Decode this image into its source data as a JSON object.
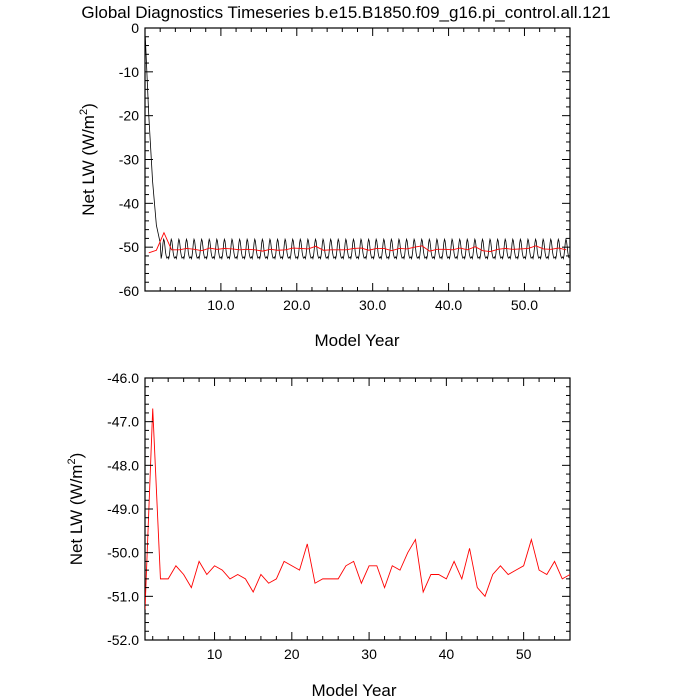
{
  "page_title": "Global Diagnostics Timeseries b.e15.B1850.f09_g16.pi_control.all.121",
  "colors": {
    "monthly": "#000000",
    "annual": "#ff0000",
    "axes": "#000000"
  },
  "chart_data": [
    {
      "id": "monthly",
      "type": "line",
      "title": "Global Diagnostics Timeseries b.e15.B1850.f09_g16.pi_control.all.121",
      "xlabel": "Model Year",
      "ylabel": "Net LW (W/m",
      "ylabel_sup": "2",
      "ylabel_close": ")",
      "xlim": [
        0,
        56
      ],
      "ylim": [
        -60,
        0
      ],
      "xticks": [
        10,
        20,
        30,
        40,
        50
      ],
      "xtick_labels": [
        "10.0",
        "20.0",
        "30.0",
        "40.0",
        "50.0"
      ],
      "yticks": [
        0,
        -10,
        -20,
        -30,
        -40,
        -50,
        -60
      ],
      "ytick_labels": [
        "0",
        "-10",
        "-20",
        "-30",
        "-40",
        "-50",
        "-60"
      ],
      "grid": false,
      "legend": "none",
      "series": [
        {
          "color": "#000000",
          "generated": "monthly",
          "spinup": [
            0.04,
            -2.0,
            0.5,
            -20.0,
            1.0,
            -35.0,
            1.5,
            -45.0,
            2.0,
            -49.0
          ],
          "month_values": [
            -52.2,
            -52.6,
            -51.9,
            -50.6,
            -49.0,
            -48.2,
            -48.6,
            -49.8,
            -51.2,
            -52.0,
            -52.5,
            -52.4
          ],
          "x_end": 55.9
        },
        {
          "color": "#ff0000",
          "x": [
            0.5,
            1.5,
            2.5,
            3.5,
            4.5,
            5.5,
            6.5,
            7.5,
            8.5,
            9.5,
            10.5,
            11.5,
            12.5,
            13.5,
            14.5,
            15.5,
            16.5,
            17.5,
            18.5,
            19.5,
            20.5,
            21.5,
            22.5,
            23.5,
            24.5,
            25.5,
            26.5,
            27.5,
            28.5,
            29.5,
            30.5,
            31.5,
            32.5,
            33.5,
            34.5,
            35.5,
            36.5,
            37.5,
            38.5,
            39.5,
            40.5,
            41.5,
            42.5,
            43.5,
            44.5,
            45.5,
            46.5,
            47.5,
            48.5,
            49.5,
            50.5,
            51.5,
            52.5,
            53.5,
            54.5,
            55.5
          ],
          "values": [
            -51.3,
            -50.7,
            -46.7,
            -50.6,
            -50.6,
            -50.3,
            -50.5,
            -50.8,
            -50.2,
            -50.5,
            -50.3,
            -50.4,
            -50.6,
            -50.5,
            -50.6,
            -50.9,
            -50.5,
            -50.7,
            -50.6,
            -50.2,
            -50.3,
            -50.4,
            -49.8,
            -50.7,
            -50.6,
            -50.6,
            -50.6,
            -50.3,
            -50.2,
            -50.7,
            -50.3,
            -50.3,
            -50.8,
            -50.3,
            -50.4,
            -50.0,
            -49.7,
            -50.9,
            -50.5,
            -50.5,
            -50.6,
            -50.2,
            -50.6,
            -49.9,
            -50.8,
            -51.0,
            -50.5,
            -50.3,
            -50.5,
            -50.4,
            -50.3,
            -49.7,
            -50.4,
            -50.5,
            -50.2,
            -50.6
          ]
        }
      ]
    },
    {
      "id": "annual",
      "type": "line",
      "xlabel": "Model Year",
      "ylabel": "Net LW (W/m",
      "ylabel_sup": "2",
      "ylabel_close": ")",
      "xlim": [
        1,
        56
      ],
      "ylim": [
        -52,
        -46
      ],
      "xticks": [
        10,
        20,
        30,
        40,
        50
      ],
      "xtick_labels": [
        "10",
        "20",
        "30",
        "40",
        "50"
      ],
      "yticks": [
        -46,
        -47,
        -48,
        -49,
        -50,
        -51,
        -52
      ],
      "ytick_labels": [
        "-46.0",
        "-47.0",
        "-48.0",
        "-49.0",
        "-50.0",
        "-51.0",
        "-52.0"
      ],
      "grid": false,
      "legend": "none",
      "series": [
        {
          "color": "#ff0000",
          "x": [
            1,
            2,
            3,
            4,
            5,
            6,
            7,
            8,
            9,
            10,
            11,
            12,
            13,
            14,
            15,
            16,
            17,
            18,
            19,
            20,
            21,
            22,
            23,
            24,
            25,
            26,
            27,
            28,
            29,
            30,
            31,
            32,
            33,
            34,
            35,
            36,
            37,
            38,
            39,
            40,
            41,
            42,
            43,
            44,
            45,
            46,
            47,
            48,
            49,
            50,
            51,
            52,
            53,
            54,
            55,
            56
          ],
          "values": [
            -51.3,
            -46.7,
            -50.6,
            -50.6,
            -50.3,
            -50.5,
            -50.8,
            -50.2,
            -50.5,
            -50.3,
            -50.4,
            -50.6,
            -50.5,
            -50.6,
            -50.9,
            -50.5,
            -50.7,
            -50.6,
            -50.2,
            -50.3,
            -50.4,
            -49.8,
            -50.7,
            -50.6,
            -50.6,
            -50.6,
            -50.3,
            -50.2,
            -50.7,
            -50.3,
            -50.3,
            -50.8,
            -50.3,
            -50.4,
            -50.0,
            -49.7,
            -50.9,
            -50.5,
            -50.5,
            -50.6,
            -50.2,
            -50.6,
            -49.9,
            -50.8,
            -51.0,
            -50.5,
            -50.3,
            -50.5,
            -50.4,
            -50.3,
            -49.7,
            -50.4,
            -50.5,
            -50.2,
            -50.6,
            -50.5
          ]
        }
      ]
    }
  ]
}
